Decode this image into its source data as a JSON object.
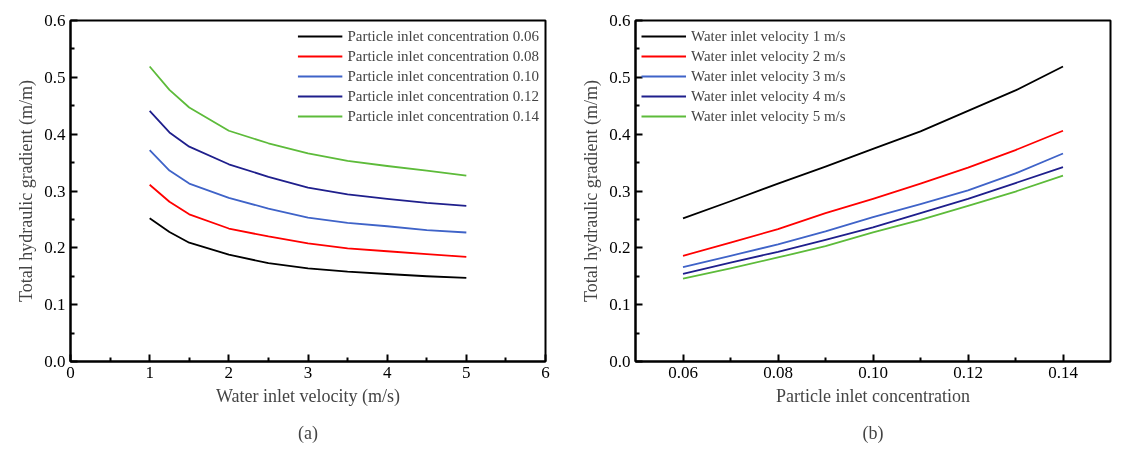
{
  "chart_data": [
    {
      "type": "line",
      "xlabel": "Water inlet velocity (m/s)",
      "ylabel": "Total hydraulic gradient (m/m)",
      "annotations": [
        "(a)"
      ],
      "legend": "top right",
      "grid": false,
      "x": [
        1,
        1.25,
        1.5,
        2,
        2.5,
        3,
        3.5,
        4,
        4.5,
        5
      ],
      "xlim": [
        0,
        6
      ],
      "xticks": [
        0,
        1,
        2,
        3,
        4,
        5,
        6
      ],
      "ylim": [
        0,
        0.6
      ],
      "yticks": [
        {
          "value": 0,
          "label": "0.0"
        },
        {
          "value": 0.1,
          "label": "0.1"
        },
        {
          "value": 0.2,
          "label": "0.2"
        },
        {
          "value": 0.3,
          "label": "0.3"
        },
        {
          "value": 0.4,
          "label": "0.4"
        },
        {
          "value": 0.5,
          "label": "0.5"
        },
        {
          "value": 0.6,
          "label": "0.6"
        }
      ],
      "series": [
        {
          "name": "Particle inlet concentration 0.06",
          "color": "#000000",
          "values": [
            0.252,
            0.228,
            0.209,
            0.188,
            0.173,
            0.164,
            0.158,
            0.154,
            0.15,
            0.147
          ]
        },
        {
          "name": "Particle inlet concentration 0.08",
          "color": "#ff0000",
          "values": [
            0.311,
            0.281,
            0.259,
            0.234,
            0.22,
            0.208,
            0.199,
            0.194,
            0.189,
            0.184
          ]
        },
        {
          "name": "Particle inlet concentration 0.10",
          "color": "#3f63c8",
          "values": [
            0.372,
            0.336,
            0.313,
            0.288,
            0.269,
            0.253,
            0.244,
            0.238,
            0.231,
            0.227
          ]
        },
        {
          "name": "Particle inlet concentration 0.12",
          "color": "#1f1f8c",
          "values": [
            0.441,
            0.403,
            0.378,
            0.347,
            0.325,
            0.306,
            0.294,
            0.286,
            0.279,
            0.274
          ]
        },
        {
          "name": "Particle inlet concentration 0.14",
          "color": "#5dbb3a",
          "values": [
            0.519,
            0.478,
            0.447,
            0.406,
            0.384,
            0.366,
            0.353,
            0.344,
            0.336,
            0.327
          ]
        }
      ]
    },
    {
      "type": "line",
      "xlabel": "Particle inlet concentration",
      "ylabel": "Total hydraulic gradient (m/m)",
      "annotations": [
        "(b)"
      ],
      "legend": "top left",
      "grid": false,
      "x": [
        0.06,
        0.07,
        0.08,
        0.09,
        0.1,
        0.11,
        0.12,
        0.13,
        0.14
      ],
      "xlim": [
        0.05,
        0.15
      ],
      "xticks": [
        {
          "value": 0.06,
          "label": "0.06"
        },
        {
          "value": 0.08,
          "label": "0.08"
        },
        {
          "value": 0.1,
          "label": "0.10"
        },
        {
          "value": 0.12,
          "label": "0.12"
        },
        {
          "value": 0.14,
          "label": "0.14"
        }
      ],
      "ylim": [
        0,
        0.6
      ],
      "yticks": [
        {
          "value": 0,
          "label": "0.0"
        },
        {
          "value": 0.1,
          "label": "0.1"
        },
        {
          "value": 0.2,
          "label": "0.2"
        },
        {
          "value": 0.3,
          "label": "0.3"
        },
        {
          "value": 0.4,
          "label": "0.4"
        },
        {
          "value": 0.5,
          "label": "0.5"
        },
        {
          "value": 0.6,
          "label": "0.6"
        }
      ],
      "series": [
        {
          "name": "Water inlet velocity 1 m/s",
          "color": "#000000",
          "values": [
            0.252,
            0.282,
            0.313,
            0.343,
            0.374,
            0.405,
            0.441,
            0.477,
            0.519
          ]
        },
        {
          "name": "Water inlet velocity 2 m/s",
          "color": "#ff0000",
          "values": [
            0.186,
            0.209,
            0.233,
            0.261,
            0.286,
            0.313,
            0.341,
            0.372,
            0.406
          ]
        },
        {
          "name": "Water inlet velocity 3 m/s",
          "color": "#3f63c8",
          "values": [
            0.166,
            0.186,
            0.206,
            0.229,
            0.254,
            0.277,
            0.301,
            0.331,
            0.366
          ]
        },
        {
          "name": "Water inlet velocity 4 m/s",
          "color": "#1f1f8c",
          "values": [
            0.154,
            0.174,
            0.193,
            0.214,
            0.236,
            0.261,
            0.286,
            0.314,
            0.342
          ]
        },
        {
          "name": "Water inlet velocity 5 m/s",
          "color": "#5dbb3a",
          "values": [
            0.146,
            0.164,
            0.183,
            0.203,
            0.227,
            0.249,
            0.274,
            0.299,
            0.327
          ]
        }
      ]
    }
  ]
}
